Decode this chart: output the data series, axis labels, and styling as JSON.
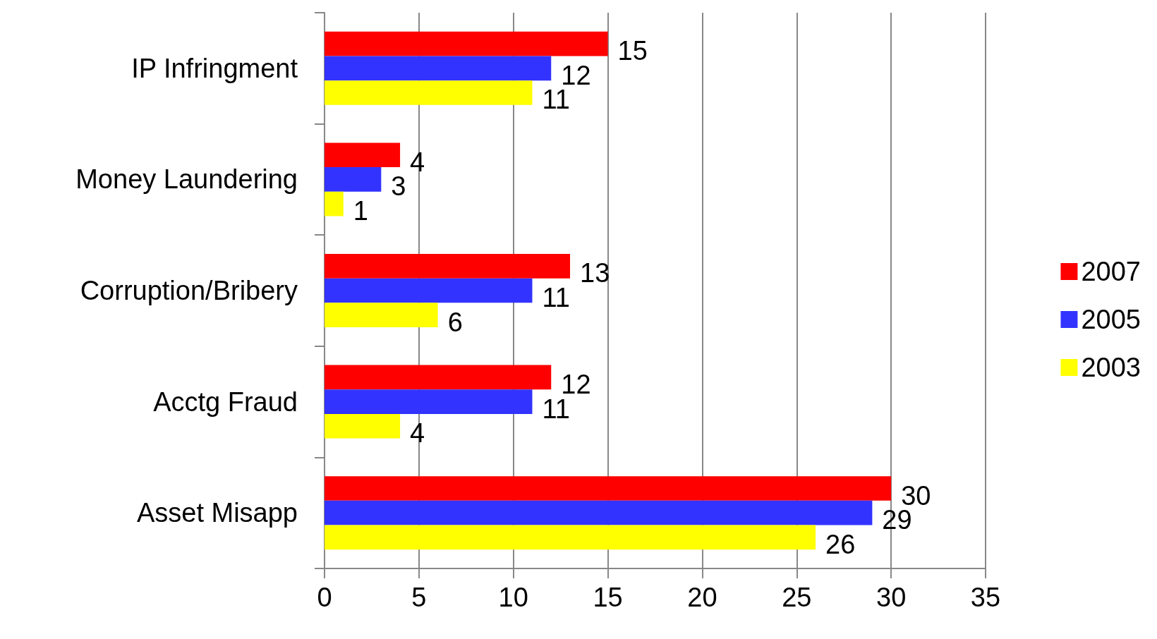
{
  "chart_data": {
    "type": "bar",
    "orientation": "horizontal",
    "categories": [
      "IP Infringment",
      "Money Laundering",
      "Corruption/Bribery",
      "Acctg Fraud",
      "Asset Misapp"
    ],
    "series": [
      {
        "name": "2007",
        "color": "#ff0000",
        "values": [
          15,
          4,
          13,
          12,
          30
        ]
      },
      {
        "name": "2005",
        "color": "#3333ff",
        "values": [
          12,
          3,
          11,
          11,
          29
        ]
      },
      {
        "name": "2003",
        "color": "#ffff00",
        "values": [
          11,
          1,
          6,
          4,
          26
        ]
      }
    ],
    "xlim": [
      0,
      35
    ],
    "xticks": [
      0,
      5,
      10,
      15,
      20,
      25,
      30,
      35
    ],
    "grid": "x",
    "legend": "right",
    "data_labels": true
  }
}
